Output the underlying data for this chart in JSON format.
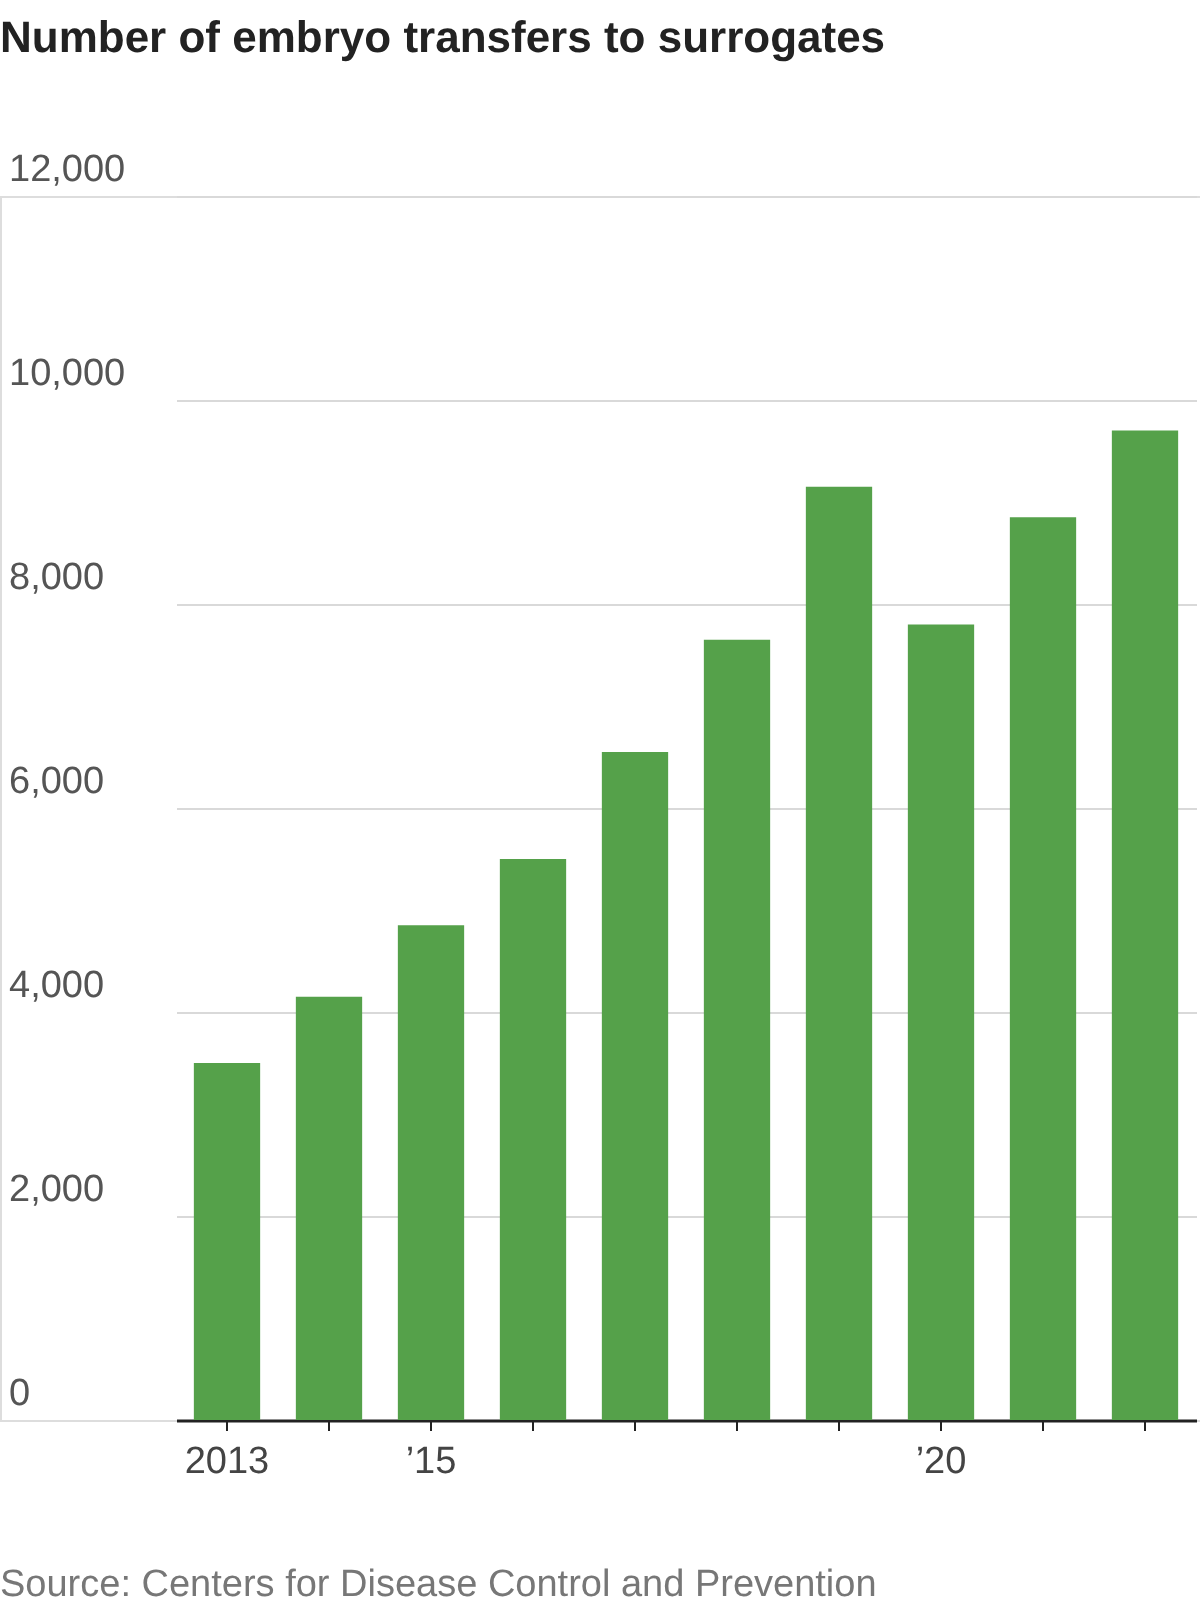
{
  "chart_data": {
    "type": "bar",
    "title": "Number of embryo transfers to surrogates",
    "categories": [
      "2013",
      null,
      "’15",
      null,
      null,
      null,
      null,
      "’20",
      null,
      null
    ],
    "values": [
      3500,
      4150,
      4850,
      5500,
      6550,
      7650,
      9150,
      7800,
      8850,
      9700
    ],
    "color": "#55a14a",
    "ylim": [
      0,
      12000
    ],
    "yticks": [
      {
        "value": 0,
        "label": "0"
      },
      {
        "value": 2000,
        "label": "2,000"
      },
      {
        "value": 4000,
        "label": "4,000"
      },
      {
        "value": 6000,
        "label": "6,000"
      },
      {
        "value": 8000,
        "label": "8,000"
      },
      {
        "value": 10000,
        "label": "10,000"
      },
      {
        "value": 12000,
        "label": "12,000"
      }
    ],
    "grid": "y",
    "annotations": [
      "Source: Centers for Disease Control and Prevention"
    ]
  }
}
